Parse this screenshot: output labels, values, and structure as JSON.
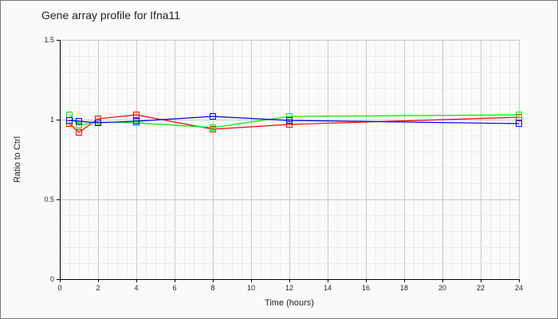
{
  "chart_data": {
    "type": "line",
    "title": "Gene array profile for Ifna11",
    "xlabel": "Time (hours)",
    "ylabel": "Ratio to Ctrl",
    "xlim": [
      0,
      24
    ],
    "ylim": [
      0,
      1.5
    ],
    "xticks": [
      0,
      2,
      4,
      6,
      8,
      10,
      12,
      14,
      16,
      18,
      20,
      22,
      24
    ],
    "yticks": [
      0,
      0.5,
      1,
      1.5
    ],
    "ytick_labels": [
      "0",
      "0.5",
      "1",
      "1.5"
    ],
    "grid": true,
    "x": [
      0.5,
      1,
      2,
      4,
      8,
      12,
      24
    ],
    "series": [
      {
        "color": "#ff0000",
        "values": [
          0.975,
          0.92,
          1.005,
          1.03,
          0.94,
          0.97,
          1.015
        ]
      },
      {
        "color": "#00ee00",
        "values": [
          1.03,
          0.965,
          0.985,
          0.98,
          0.95,
          1.02,
          1.03
        ]
      },
      {
        "color": "#0000ff",
        "values": [
          0.995,
          0.99,
          0.98,
          0.99,
          1.02,
          0.995,
          0.975
        ]
      }
    ]
  }
}
